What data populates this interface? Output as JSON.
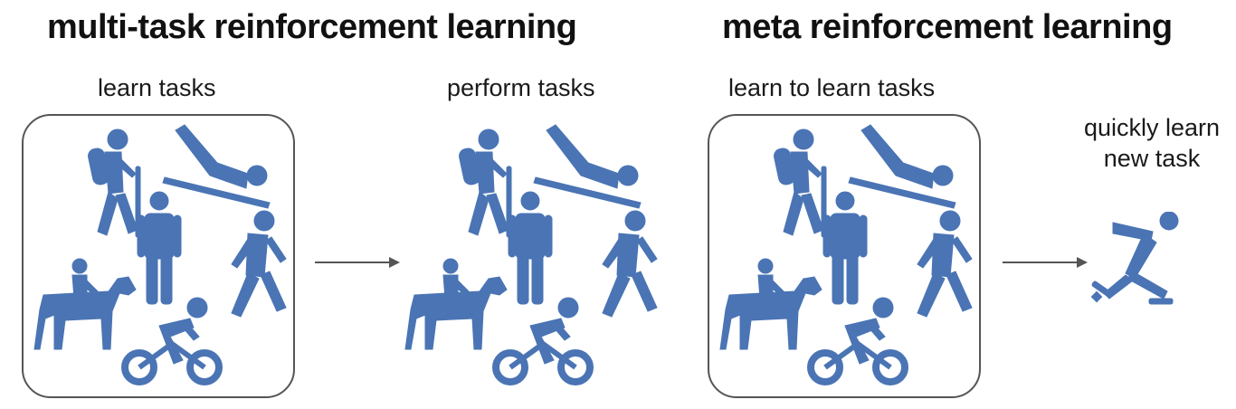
{
  "titles": {
    "multi_task": "multi-task reinforcement learning",
    "meta": "meta reinforcement learning"
  },
  "labels": {
    "learn_tasks": "learn tasks",
    "perform_tasks": "perform tasks",
    "learn_to_learn": "learn to learn tasks",
    "quickly_learn_1": "quickly learn",
    "quickly_learn_2": "new task"
  },
  "icons": [
    "hiker-icon",
    "luge-icon",
    "standing-person-icon",
    "walking-person-icon",
    "horse-rider-icon",
    "cyclist-icon",
    "ice-skater-icon"
  ],
  "colors": {
    "icon": "#4a74b4",
    "box_border": "#555555",
    "arrow": "#555555"
  }
}
